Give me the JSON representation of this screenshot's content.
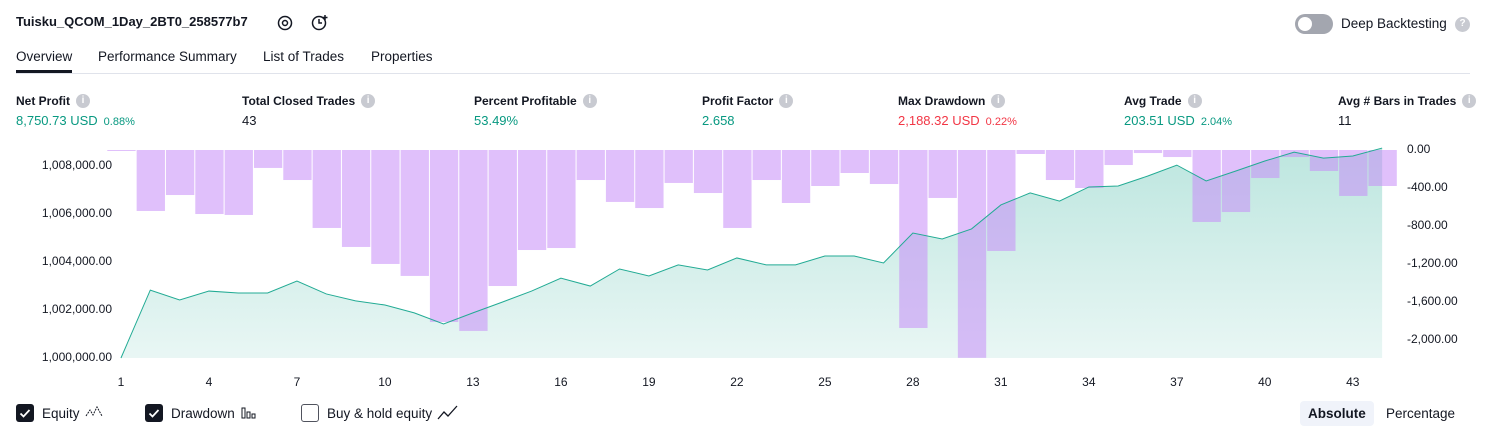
{
  "header": {
    "title": "Tuisku_QCOM_1Day_2BT0_258577b7",
    "deep_backtesting": "Deep Backtesting"
  },
  "tabs": [
    "Overview",
    "Performance Summary",
    "List of Trades",
    "Properties"
  ],
  "active_tab": 0,
  "metrics": [
    {
      "label": "Net Profit",
      "value": "8,750.73 USD",
      "percent": "0.88%",
      "color": "#089981"
    },
    {
      "label": "Total Closed Trades",
      "value": "43",
      "color": "#131722"
    },
    {
      "label": "Percent Profitable",
      "value": "53.49%",
      "color": "#089981"
    },
    {
      "label": "Profit Factor",
      "value": "2.658",
      "color": "#089981"
    },
    {
      "label": "Max Drawdown",
      "value": "2,188.32 USD",
      "percent": "0.22%",
      "color": "#f23645"
    },
    {
      "label": "Avg Trade",
      "value": "203.51 USD",
      "percent": "2.04%",
      "color": "#089981"
    },
    {
      "label": "Avg # Bars in Trades",
      "value": "11",
      "color": "#131722"
    }
  ],
  "chart_data": {
    "type": "line",
    "x": [
      1,
      2,
      3,
      4,
      5,
      6,
      7,
      8,
      9,
      10,
      11,
      12,
      13,
      14,
      15,
      16,
      17,
      18,
      19,
      20,
      21,
      22,
      23,
      24,
      25,
      26,
      27,
      28,
      29,
      30,
      31,
      32,
      33,
      34,
      35,
      36,
      37,
      38,
      39,
      40,
      41,
      42,
      43,
      44
    ],
    "xlim": [
      0.5,
      44.5
    ],
    "xticks": [
      1,
      4,
      7,
      10,
      13,
      16,
      19,
      22,
      25,
      28,
      31,
      34,
      37,
      40,
      43
    ],
    "ylim": [
      1000000,
      1008670
    ],
    "yticks": [
      {
        "value": 1000000,
        "label": "1,000,000.00"
      },
      {
        "value": 1002000,
        "label": "1,002,000.00"
      },
      {
        "value": 1004000,
        "label": "1,004,000.00"
      },
      {
        "value": 1006000,
        "label": "1,006,000.00"
      },
      {
        "value": 1008000,
        "label": "1,008,000.00"
      }
    ],
    "y2lim": [
      -2190,
      0
    ],
    "y2ticks": [
      {
        "value": 0,
        "label": "0.00"
      },
      {
        "value": -400,
        "label": "-400.00"
      },
      {
        "value": -800,
        "label": "-800.00"
      },
      {
        "value": -1200,
        "label": "-1,200.00"
      },
      {
        "value": -1600,
        "label": "-1,600.00"
      },
      {
        "value": -2000,
        "label": "-2,000.00"
      }
    ],
    "series": [
      {
        "name": "Equity",
        "type": "area",
        "color": "#22ab94",
        "checked": true,
        "values": [
          1000000,
          1002830,
          1002420,
          1002790,
          1002710,
          1002710,
          1003210,
          1002670,
          1002380,
          1002210,
          1001880,
          1001420,
          1001880,
          1002330,
          1002790,
          1003330,
          1003000,
          1003710,
          1003420,
          1003880,
          1003670,
          1004170,
          1003880,
          1003880,
          1004250,
          1004250,
          1003960,
          1005210,
          1004960,
          1005380,
          1006380,
          1006880,
          1006540,
          1007130,
          1007170,
          1007580,
          1008040,
          1007380,
          1007790,
          1008210,
          1008580,
          1008330,
          1008420,
          1008750.73
        ]
      },
      {
        "name": "Drawdown",
        "type": "bar",
        "axis": "y2",
        "color": "#c68cf7",
        "checked": true,
        "values": [
          -10,
          -642,
          -474,
          -674,
          -684,
          -189,
          -316,
          -821,
          -1021,
          -1200,
          -1326,
          -1811,
          -1905,
          -1432,
          -1053,
          -1032,
          -316,
          -547,
          -611,
          -347,
          -453,
          -821,
          -316,
          -558,
          -379,
          -242,
          -358,
          -1874,
          -505,
          -2188.32,
          -1063,
          -42,
          -316,
          -400,
          -158,
          -32,
          -74,
          -758,
          -653,
          -295,
          -74,
          -221,
          -484,
          -379
        ]
      }
    ]
  },
  "controls": {
    "buy_hold": {
      "label": "Buy & hold equity",
      "checked": false
    },
    "modes": [
      "Absolute",
      "Percentage"
    ],
    "active_mode": 0
  }
}
